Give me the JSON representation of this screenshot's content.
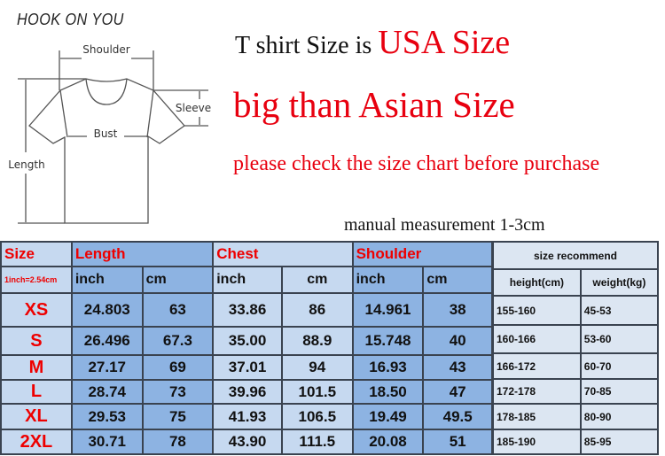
{
  "brand": "HOOK ON YOU",
  "diagram": {
    "shoulder": "Shoulder",
    "sleeve": "Sleeve",
    "bust": "Bust",
    "length": "Length"
  },
  "headline": {
    "prefix": "T shirt Size is ",
    "highlight": "USA Size",
    "line2": "big than Asian Size",
    "line3": "please check the size chart before purchase",
    "note": "manual measurement 1-3cm"
  },
  "table": {
    "size_header": "Size",
    "conversion": "1inch=2.54cm",
    "groups": [
      "Length",
      "Chest",
      "Shoulder"
    ],
    "units": [
      "inch",
      "cm",
      "inch",
      "cm",
      "inch",
      "cm"
    ],
    "rows": [
      {
        "size": "XS",
        "values": [
          "24.803",
          "63",
          "33.86",
          "86",
          "14.961",
          "38"
        ]
      },
      {
        "size": "S",
        "values": [
          "26.496",
          "67.3",
          "35.00",
          "88.9",
          "15.748",
          "40"
        ]
      },
      {
        "size": "M",
        "values": [
          "27.17",
          "69",
          "37.01",
          "94",
          "16.93",
          "43"
        ]
      },
      {
        "size": "L",
        "values": [
          "28.74",
          "73",
          "39.96",
          "101.5",
          "18.50",
          "47"
        ]
      },
      {
        "size": "XL",
        "values": [
          "29.53",
          "75",
          "41.93",
          "106.5",
          "19.49",
          "49.5"
        ]
      },
      {
        "size": "2XL",
        "values": [
          "30.71",
          "78",
          "43.90",
          "111.5",
          "20.08",
          "51"
        ]
      }
    ]
  },
  "recommend": {
    "title": "size recommend",
    "height_header": "height(cm)",
    "weight_header": "weight(kg)",
    "rows": [
      {
        "height": "155-160",
        "weight": "45-53"
      },
      {
        "height": "160-166",
        "weight": "53-60"
      },
      {
        "height": "166-172",
        "weight": "60-70"
      },
      {
        "height": "172-178",
        "weight": "70-85"
      },
      {
        "height": "178-185",
        "weight": "80-90"
      },
      {
        "height": "185-190",
        "weight": "85-95"
      }
    ]
  },
  "colors": {
    "red": "#e8000f",
    "cell_light": "#c6d9f0",
    "cell_dark": "#8db3e2",
    "recommend": "#dce6f2"
  }
}
